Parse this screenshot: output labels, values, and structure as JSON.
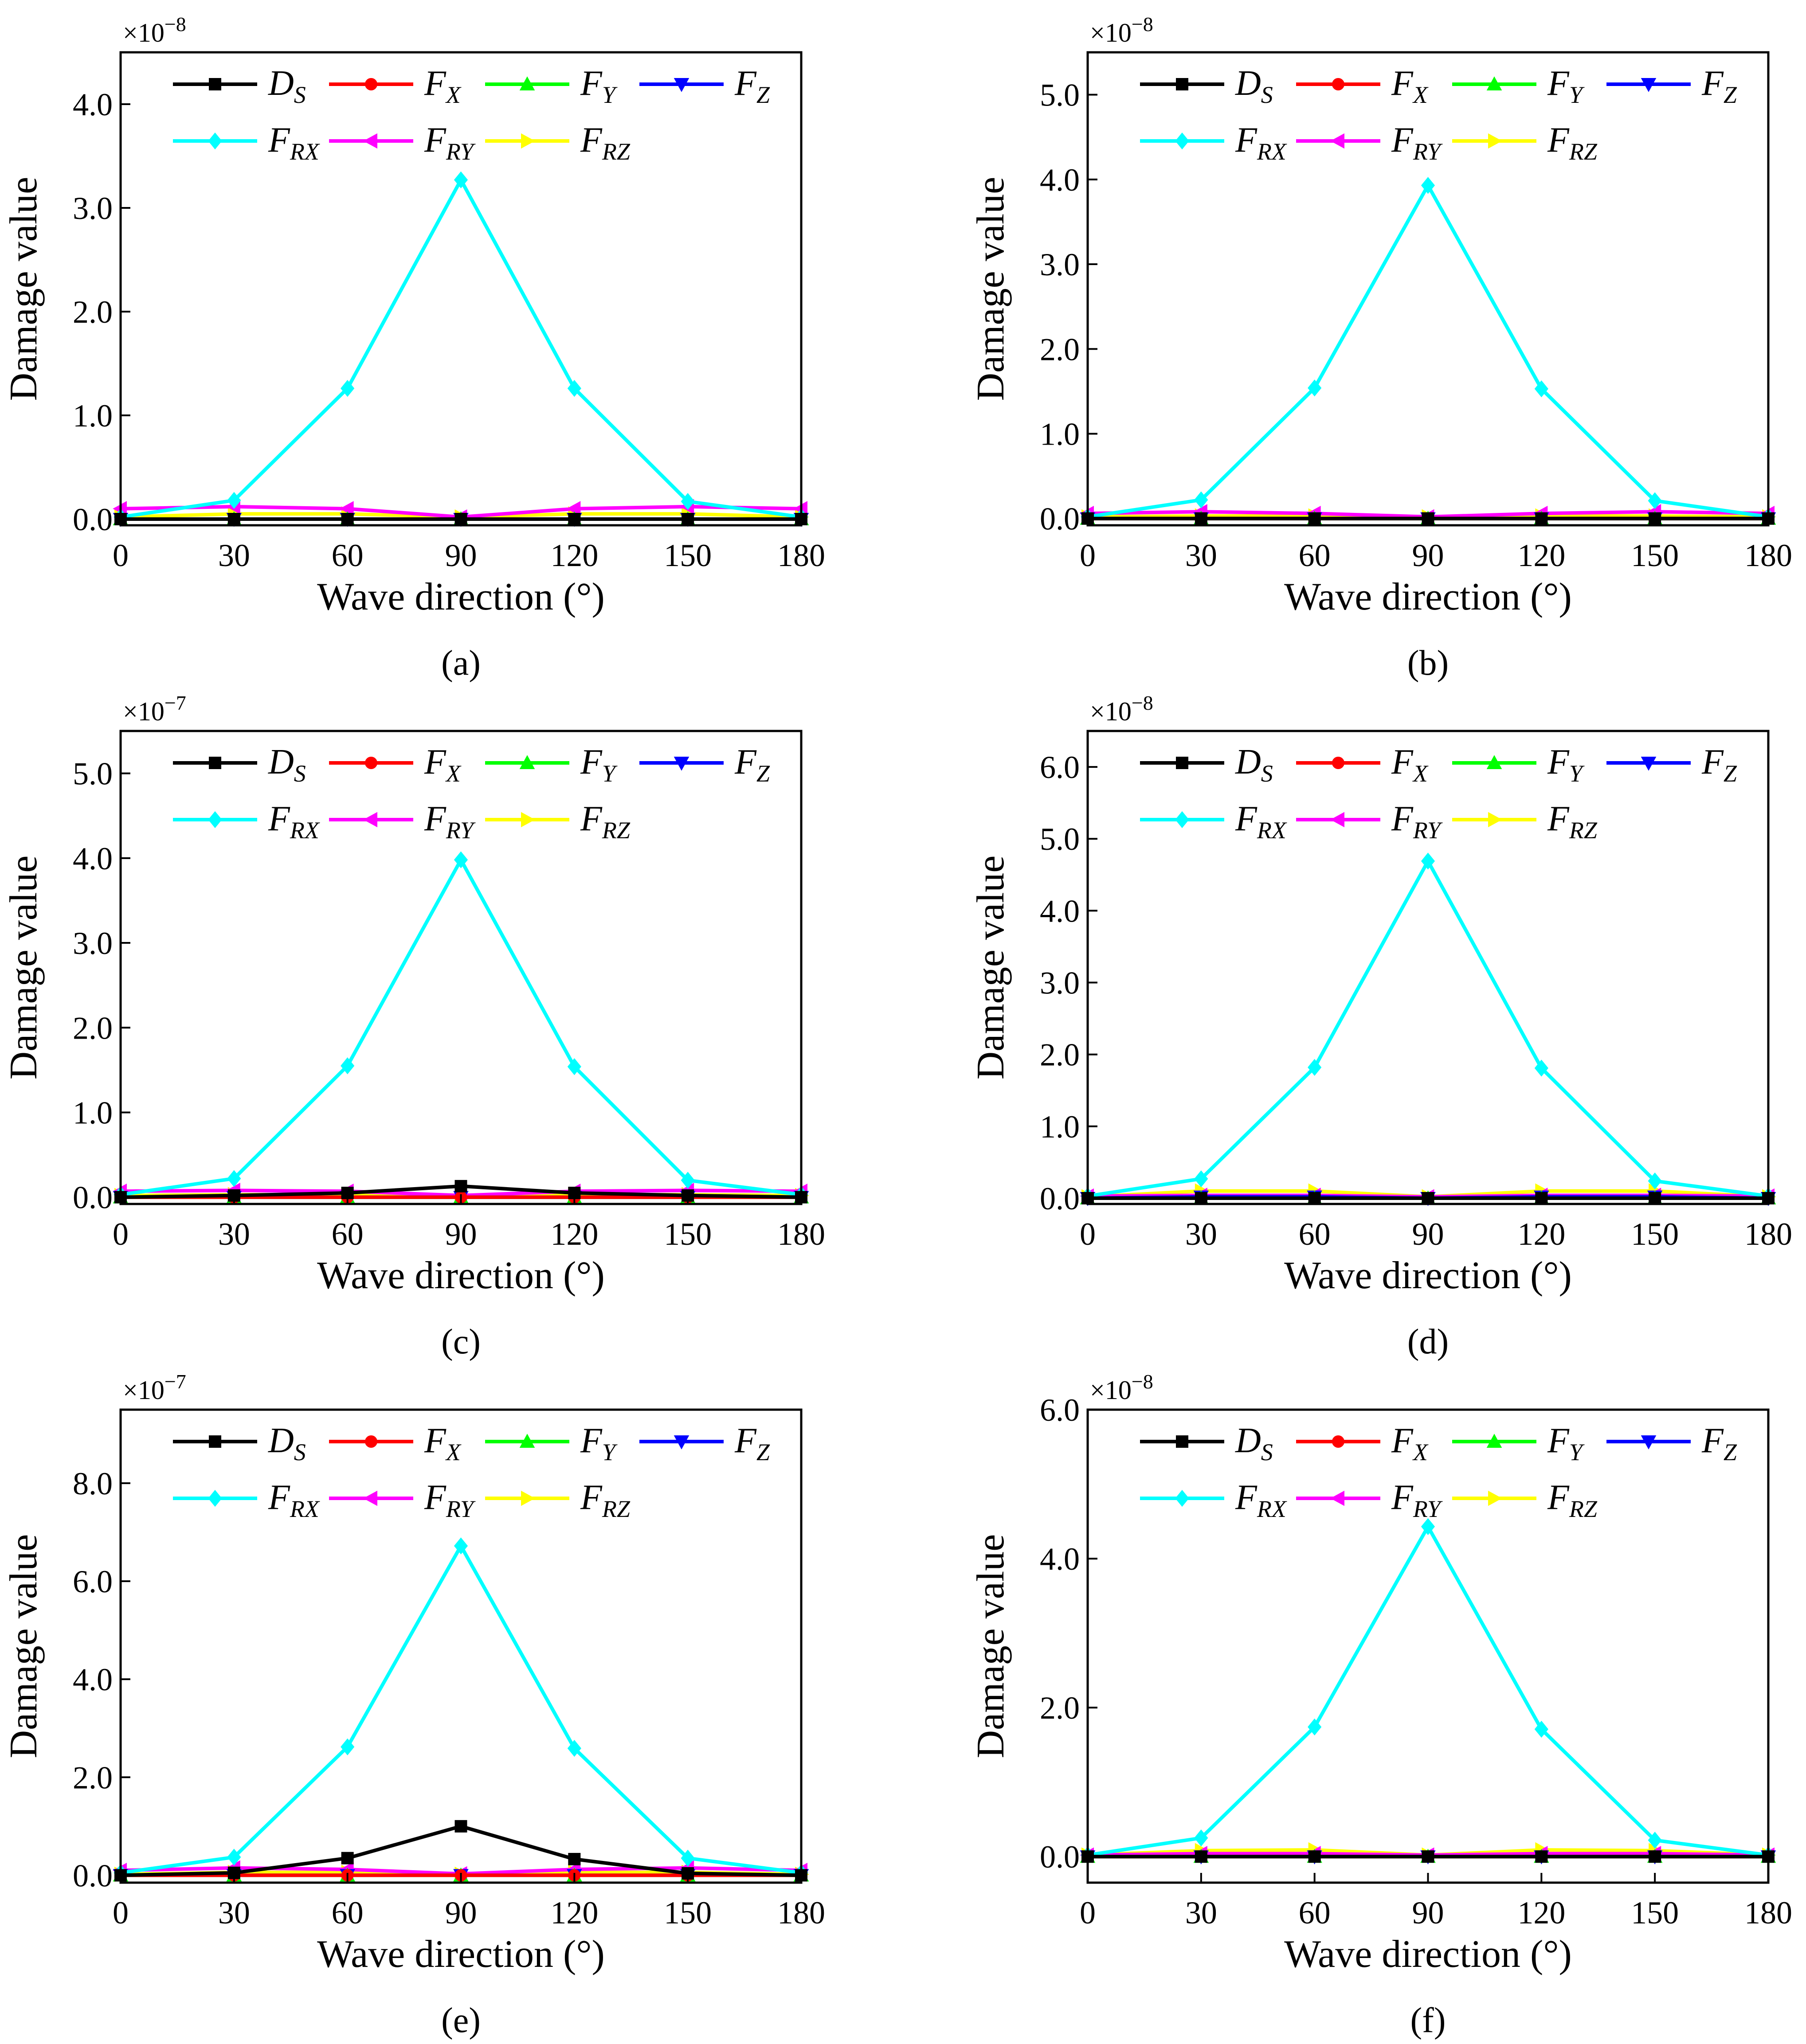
{
  "figure": {
    "legend_entries": [
      {
        "name": "D",
        "sub": "S",
        "color": "#000000",
        "marker": "square"
      },
      {
        "name": "F",
        "sub": "X",
        "color": "#ff0000",
        "marker": "circle"
      },
      {
        "name": "F",
        "sub": "Y",
        "color": "#00ff00",
        "marker": "triangle-up"
      },
      {
        "name": "F",
        "sub": "Z",
        "color": "#0000ff",
        "marker": "triangle-down"
      },
      {
        "name": "F",
        "sub": "RX",
        "color": "#00ffff",
        "marker": "diamond"
      },
      {
        "name": "F",
        "sub": "RY",
        "color": "#ff00ff",
        "marker": "triangle-left"
      },
      {
        "name": "F",
        "sub": "RZ",
        "color": "#ffff00",
        "marker": "triangle-right"
      }
    ]
  },
  "chart_data": [
    {
      "type": "line",
      "panel_label": "(a)",
      "xlabel": "Wave direction (°)",
      "ylabel": "Damage value",
      "multiplier_base": "×10",
      "multiplier_exp": "−8",
      "x": [
        0,
        30,
        60,
        90,
        120,
        150,
        180
      ],
      "xlim": [
        0,
        180
      ],
      "ylim": [
        -0.06,
        4.5
      ],
      "yticks": [
        0.0,
        1.0,
        2.0,
        3.0,
        4.0
      ],
      "tick_decimals": 1,
      "series": [
        {
          "name": "DS",
          "values": [
            0.0,
            0.0,
            0.0,
            0.0,
            0.0,
            0.0,
            0.0
          ]
        },
        {
          "name": "FX",
          "values": [
            0.0,
            0.0,
            0.0,
            0.0,
            0.0,
            0.0,
            0.0
          ]
        },
        {
          "name": "FY",
          "values": [
            0.0,
            0.0,
            0.0,
            0.0,
            0.0,
            0.0,
            0.0
          ]
        },
        {
          "name": "FZ",
          "values": [
            0.0,
            0.0,
            0.0,
            0.0,
            0.0,
            0.0,
            0.0
          ]
        },
        {
          "name": "FRX",
          "values": [
            0.02,
            0.18,
            1.26,
            3.27,
            1.26,
            0.17,
            0.02
          ]
        },
        {
          "name": "FRY",
          "values": [
            0.1,
            0.12,
            0.1,
            0.02,
            0.1,
            0.12,
            0.1
          ]
        },
        {
          "name": "FRZ",
          "values": [
            0.02,
            0.05,
            0.05,
            0.02,
            0.05,
            0.05,
            0.02
          ]
        }
      ]
    },
    {
      "type": "line",
      "panel_label": "(b)",
      "xlabel": "Wave direction (°)",
      "ylabel": "Damage value",
      "multiplier_base": "×10",
      "multiplier_exp": "−8",
      "x": [
        0,
        30,
        60,
        90,
        120,
        150,
        180
      ],
      "xlim": [
        0,
        180
      ],
      "ylim": [
        -0.08,
        5.5
      ],
      "yticks": [
        0.0,
        1.0,
        2.0,
        3.0,
        4.0,
        5.0
      ],
      "tick_decimals": 1,
      "series": [
        {
          "name": "DS",
          "values": [
            0.0,
            0.0,
            0.0,
            0.0,
            0.0,
            0.0,
            0.0
          ]
        },
        {
          "name": "FX",
          "values": [
            0.0,
            0.0,
            0.0,
            0.0,
            0.0,
            0.0,
            0.0
          ]
        },
        {
          "name": "FY",
          "values": [
            0.0,
            0.0,
            0.0,
            0.0,
            0.0,
            0.0,
            0.0
          ]
        },
        {
          "name": "FZ",
          "values": [
            0.0,
            0.0,
            0.0,
            0.0,
            0.0,
            0.0,
            0.0
          ]
        },
        {
          "name": "FRX",
          "values": [
            0.02,
            0.22,
            1.54,
            3.93,
            1.53,
            0.21,
            0.02
          ]
        },
        {
          "name": "FRY",
          "values": [
            0.06,
            0.08,
            0.06,
            0.02,
            0.06,
            0.08,
            0.06
          ]
        },
        {
          "name": "FRZ",
          "values": [
            0.02,
            0.03,
            0.03,
            0.02,
            0.03,
            0.03,
            0.02
          ]
        }
      ]
    },
    {
      "type": "line",
      "panel_label": "(c)",
      "xlabel": "Wave direction (°)",
      "ylabel": "Damage value",
      "multiplier_base": "×10",
      "multiplier_exp": "−7",
      "x": [
        0,
        30,
        60,
        90,
        120,
        150,
        180
      ],
      "xlim": [
        0,
        180
      ],
      "ylim": [
        -0.08,
        5.5
      ],
      "yticks": [
        0.0,
        1.0,
        2.0,
        3.0,
        4.0,
        5.0
      ],
      "tick_decimals": 1,
      "series": [
        {
          "name": "DS",
          "values": [
            0.0,
            0.02,
            0.05,
            0.13,
            0.05,
            0.02,
            0.0
          ]
        },
        {
          "name": "FX",
          "values": [
            0.0,
            0.0,
            0.0,
            0.0,
            0.0,
            0.0,
            0.0
          ]
        },
        {
          "name": "FY",
          "values": [
            0.0,
            0.0,
            0.0,
            0.0,
            0.0,
            0.0,
            0.0
          ]
        },
        {
          "name": "FZ",
          "values": [
            0.0,
            0.0,
            0.0,
            0.0,
            0.0,
            0.0,
            0.0
          ]
        },
        {
          "name": "FRX",
          "values": [
            0.03,
            0.22,
            1.55,
            3.98,
            1.54,
            0.2,
            0.03
          ]
        },
        {
          "name": "FRY",
          "values": [
            0.07,
            0.08,
            0.07,
            0.02,
            0.07,
            0.08,
            0.07
          ]
        },
        {
          "name": "FRZ",
          "values": [
            0.02,
            0.03,
            0.03,
            0.02,
            0.03,
            0.03,
            0.02
          ]
        }
      ]
    },
    {
      "type": "line",
      "panel_label": "(d)",
      "xlabel": "Wave direction (°)",
      "ylabel": "Damage value",
      "multiplier_base": "×10",
      "multiplier_exp": "−8",
      "x": [
        0,
        30,
        60,
        90,
        120,
        150,
        180
      ],
      "xlim": [
        0,
        180
      ],
      "ylim": [
        -0.08,
        6.5
      ],
      "yticks": [
        0.0,
        1.0,
        2.0,
        3.0,
        4.0,
        5.0,
        6.0
      ],
      "tick_decimals": 1,
      "series": [
        {
          "name": "DS",
          "values": [
            0.0,
            0.0,
            0.0,
            0.0,
            0.0,
            0.0,
            0.0
          ]
        },
        {
          "name": "FX",
          "values": [
            0.0,
            0.0,
            0.0,
            0.0,
            0.0,
            0.0,
            0.0
          ]
        },
        {
          "name": "FY",
          "values": [
            0.0,
            0.0,
            0.0,
            0.0,
            0.0,
            0.0,
            0.0
          ]
        },
        {
          "name": "FZ",
          "values": [
            0.0,
            0.02,
            0.02,
            0.0,
            0.02,
            0.02,
            0.0
          ]
        },
        {
          "name": "FRX",
          "values": [
            0.03,
            0.27,
            1.82,
            4.69,
            1.81,
            0.24,
            0.03
          ]
        },
        {
          "name": "FRY",
          "values": [
            0.03,
            0.04,
            0.04,
            0.02,
            0.04,
            0.04,
            0.03
          ]
        },
        {
          "name": "FRZ",
          "values": [
            0.02,
            0.1,
            0.1,
            0.02,
            0.1,
            0.1,
            0.02
          ]
        }
      ]
    },
    {
      "type": "line",
      "panel_label": "(e)",
      "xlabel": "Wave direction (°)",
      "ylabel": "Damage value",
      "multiplier_base": "×10",
      "multiplier_exp": "−7",
      "x": [
        0,
        30,
        60,
        90,
        120,
        150,
        180
      ],
      "xlim": [
        0,
        180
      ],
      "ylim": [
        -0.15,
        9.5
      ],
      "yticks": [
        0.0,
        2.0,
        4.0,
        6.0,
        8.0
      ],
      "tick_decimals": 1,
      "series": [
        {
          "name": "DS",
          "values": [
            0.0,
            0.05,
            0.35,
            1.0,
            0.33,
            0.04,
            0.0
          ]
        },
        {
          "name": "FX",
          "values": [
            0.0,
            0.0,
            0.0,
            0.0,
            0.0,
            0.0,
            0.0
          ]
        },
        {
          "name": "FY",
          "values": [
            0.0,
            0.0,
            0.0,
            0.0,
            0.0,
            0.0,
            0.0
          ]
        },
        {
          "name": "FZ",
          "values": [
            0.0,
            0.0,
            0.0,
            0.0,
            0.0,
            0.0,
            0.0
          ]
        },
        {
          "name": "FRX",
          "values": [
            0.05,
            0.37,
            2.62,
            6.72,
            2.59,
            0.35,
            0.05
          ]
        },
        {
          "name": "FRY",
          "values": [
            0.1,
            0.15,
            0.12,
            0.03,
            0.12,
            0.15,
            0.1
          ]
        },
        {
          "name": "FRZ",
          "values": [
            0.02,
            0.06,
            0.06,
            0.02,
            0.06,
            0.06,
            0.02
          ]
        }
      ]
    },
    {
      "type": "line",
      "panel_label": "(f)",
      "xlabel": "Wave direction (°)",
      "ylabel": "Damage value",
      "multiplier_base": "×10",
      "multiplier_exp": "−8",
      "x": [
        0,
        30,
        60,
        90,
        120,
        150,
        180
      ],
      "xlim": [
        0,
        180
      ],
      "ylim": [
        -0.35,
        6.0
      ],
      "yticks": [
        0.0,
        2.0,
        4.0,
        6.0
      ],
      "tick_decimals": 1,
      "series": [
        {
          "name": "DS",
          "values": [
            0.0,
            0.0,
            0.0,
            0.0,
            0.0,
            0.0,
            0.0
          ]
        },
        {
          "name": "FX",
          "values": [
            0.0,
            0.0,
            0.0,
            0.0,
            0.0,
            0.0,
            0.0
          ]
        },
        {
          "name": "FY",
          "values": [
            0.0,
            0.0,
            0.0,
            0.0,
            0.0,
            0.0,
            0.0
          ]
        },
        {
          "name": "FZ",
          "values": [
            0.0,
            0.0,
            0.0,
            0.0,
            0.0,
            0.0,
            0.0
          ]
        },
        {
          "name": "FRX",
          "values": [
            0.02,
            0.25,
            1.74,
            4.43,
            1.71,
            0.22,
            0.02
          ]
        },
        {
          "name": "FRY",
          "values": [
            0.02,
            0.04,
            0.04,
            0.02,
            0.04,
            0.04,
            0.02
          ]
        },
        {
          "name": "FRZ",
          "values": [
            0.02,
            0.08,
            0.09,
            0.02,
            0.09,
            0.08,
            0.02
          ]
        }
      ]
    }
  ]
}
